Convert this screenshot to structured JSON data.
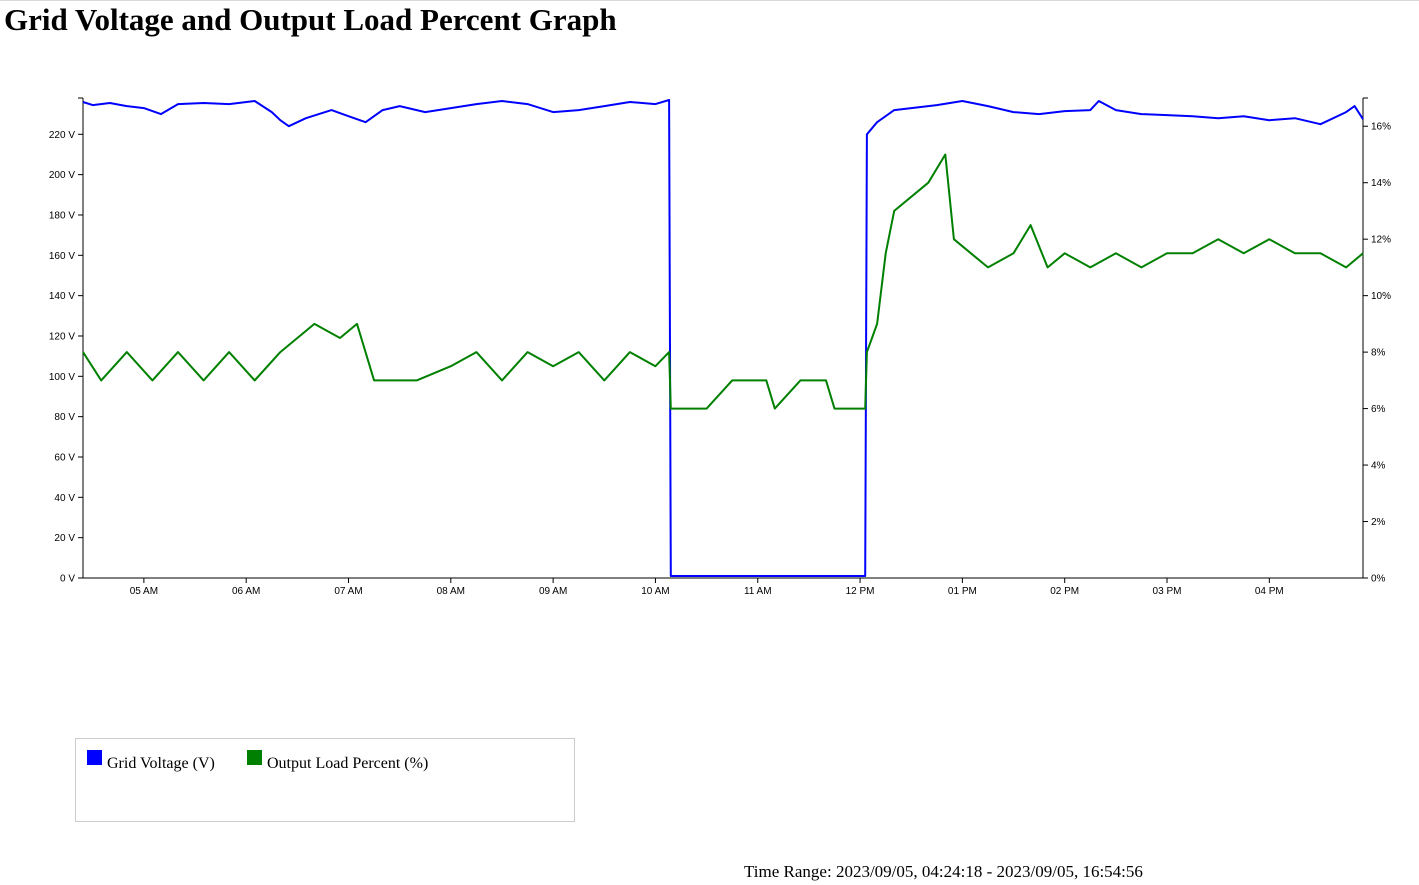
{
  "page": {
    "title": "Grid Voltage and Output Load Percent Graph"
  },
  "legend": {
    "items": [
      {
        "label": "Grid Voltage (V)",
        "color": "#0000ff"
      },
      {
        "label": "Output Load Percent (%)",
        "color": "#008000"
      }
    ]
  },
  "footer": {
    "time_range_label": "Time Range:",
    "time_range_value": "2023/09/05, 04:24:18 - 2023/09/05, 16:54:56"
  },
  "chart_data": {
    "type": "line",
    "title": "Grid Voltage and Output Load Percent Graph",
    "x_domain": [
      "2023-09-05T04:24:18",
      "2023-09-05T16:54:56"
    ],
    "x_ticks": [
      {
        "time": "2023-09-05T05:00:00",
        "label": "05 AM"
      },
      {
        "time": "2023-09-05T06:00:00",
        "label": "06 AM"
      },
      {
        "time": "2023-09-05T07:00:00",
        "label": "07 AM"
      },
      {
        "time": "2023-09-05T08:00:00",
        "label": "08 AM"
      },
      {
        "time": "2023-09-05T09:00:00",
        "label": "09 AM"
      },
      {
        "time": "2023-09-05T10:00:00",
        "label": "10 AM"
      },
      {
        "time": "2023-09-05T11:00:00",
        "label": "11 AM"
      },
      {
        "time": "2023-09-05T12:00:00",
        "label": "12 PM"
      },
      {
        "time": "2023-09-05T13:00:00",
        "label": "01 PM"
      },
      {
        "time": "2023-09-05T14:00:00",
        "label": "02 PM"
      },
      {
        "time": "2023-09-05T15:00:00",
        "label": "03 PM"
      },
      {
        "time": "2023-09-05T16:00:00",
        "label": "04 PM"
      }
    ],
    "y_left": {
      "range": [
        0,
        238
      ],
      "ticks": [
        0,
        20,
        40,
        60,
        80,
        100,
        120,
        140,
        160,
        180,
        200,
        220
      ],
      "tick_labels": [
        "0 V",
        "20 V",
        "40 V",
        "60 V",
        "80 V",
        "100 V",
        "120 V",
        "140 V",
        "160 V",
        "180 V",
        "200 V",
        "220 V"
      ]
    },
    "y_right": {
      "range": [
        0,
        17
      ],
      "ticks": [
        0,
        2,
        4,
        6,
        8,
        10,
        12,
        14,
        16
      ],
      "tick_labels": [
        "0%",
        "2%",
        "4%",
        "6%",
        "8%",
        "10%",
        "12%",
        "14%",
        "16%"
      ]
    },
    "series": [
      {
        "name": "Grid Voltage (V)",
        "axis": "left",
        "color": "#0000ff",
        "points": [
          [
            "2023-09-05T04:24:18",
            236.0
          ],
          [
            "2023-09-05T04:30:00",
            234.5
          ],
          [
            "2023-09-05T04:40:00",
            235.5
          ],
          [
            "2023-09-05T04:50:00",
            234.0
          ],
          [
            "2023-09-05T05:00:00",
            233.0
          ],
          [
            "2023-09-05T05:10:00",
            230.0
          ],
          [
            "2023-09-05T05:20:00",
            235.0
          ],
          [
            "2023-09-05T05:35:00",
            235.5
          ],
          [
            "2023-09-05T05:50:00",
            235.0
          ],
          [
            "2023-09-05T06:05:00",
            236.5
          ],
          [
            "2023-09-05T06:15:00",
            231.0
          ],
          [
            "2023-09-05T06:20:00",
            227.0
          ],
          [
            "2023-09-05T06:25:00",
            224.0
          ],
          [
            "2023-09-05T06:35:00",
            228.0
          ],
          [
            "2023-09-05T06:50:00",
            232.0
          ],
          [
            "2023-09-05T07:00:00",
            229.0
          ],
          [
            "2023-09-05T07:10:00",
            226.0
          ],
          [
            "2023-09-05T07:20:00",
            232.0
          ],
          [
            "2023-09-05T07:30:00",
            234.0
          ],
          [
            "2023-09-05T07:45:00",
            231.0
          ],
          [
            "2023-09-05T08:00:00",
            233.0
          ],
          [
            "2023-09-05T08:15:00",
            235.0
          ],
          [
            "2023-09-05T08:30:00",
            236.5
          ],
          [
            "2023-09-05T08:45:00",
            235.0
          ],
          [
            "2023-09-05T09:00:00",
            231.0
          ],
          [
            "2023-09-05T09:15:00",
            232.0
          ],
          [
            "2023-09-05T09:30:00",
            234.0
          ],
          [
            "2023-09-05T09:45:00",
            236.0
          ],
          [
            "2023-09-05T10:00:00",
            235.0
          ],
          [
            "2023-09-05T10:08:00",
            237.0
          ],
          [
            "2023-09-05T10:09:00",
            1.0
          ],
          [
            "2023-09-05T12:03:00",
            1.0
          ],
          [
            "2023-09-05T12:04:00",
            220.0
          ],
          [
            "2023-09-05T12:10:00",
            226.0
          ],
          [
            "2023-09-05T12:20:00",
            232.0
          ],
          [
            "2023-09-05T12:30:00",
            233.0
          ],
          [
            "2023-09-05T12:45:00",
            234.5
          ],
          [
            "2023-09-05T13:00:00",
            236.5
          ],
          [
            "2023-09-05T13:15:00",
            234.0
          ],
          [
            "2023-09-05T13:30:00",
            231.0
          ],
          [
            "2023-09-05T13:45:00",
            230.0
          ],
          [
            "2023-09-05T14:00:00",
            231.5
          ],
          [
            "2023-09-05T14:15:00",
            232.0
          ],
          [
            "2023-09-05T14:20:00",
            236.5
          ],
          [
            "2023-09-05T14:30:00",
            232.0
          ],
          [
            "2023-09-05T14:45:00",
            230.0
          ],
          [
            "2023-09-05T15:00:00",
            229.5
          ],
          [
            "2023-09-05T15:15:00",
            229.0
          ],
          [
            "2023-09-05T15:30:00",
            228.0
          ],
          [
            "2023-09-05T15:45:00",
            229.0
          ],
          [
            "2023-09-05T16:00:00",
            227.0
          ],
          [
            "2023-09-05T16:15:00",
            228.0
          ],
          [
            "2023-09-05T16:30:00",
            225.0
          ],
          [
            "2023-09-05T16:45:00",
            231.0
          ],
          [
            "2023-09-05T16:50:00",
            234.0
          ],
          [
            "2023-09-05T16:54:56",
            227.5
          ]
        ]
      },
      {
        "name": "Output Load Percent (%)",
        "axis": "right",
        "color": "#008000",
        "points": [
          [
            "2023-09-05T04:24:18",
            8.0
          ],
          [
            "2023-09-05T04:35:00",
            7.0
          ],
          [
            "2023-09-05T04:50:00",
            8.0
          ],
          [
            "2023-09-05T05:05:00",
            7.0
          ],
          [
            "2023-09-05T05:20:00",
            8.0
          ],
          [
            "2023-09-05T05:35:00",
            7.0
          ],
          [
            "2023-09-05T05:50:00",
            8.0
          ],
          [
            "2023-09-05T06:05:00",
            7.0
          ],
          [
            "2023-09-05T06:20:00",
            8.0
          ],
          [
            "2023-09-05T06:40:00",
            9.0
          ],
          [
            "2023-09-05T06:55:00",
            8.5
          ],
          [
            "2023-09-05T07:05:00",
            9.0
          ],
          [
            "2023-09-05T07:15:00",
            7.0
          ],
          [
            "2023-09-05T07:40:00",
            7.0
          ],
          [
            "2023-09-05T08:00:00",
            7.5
          ],
          [
            "2023-09-05T08:15:00",
            8.0
          ],
          [
            "2023-09-05T08:30:00",
            7.0
          ],
          [
            "2023-09-05T08:45:00",
            8.0
          ],
          [
            "2023-09-05T09:00:00",
            7.5
          ],
          [
            "2023-09-05T09:15:00",
            8.0
          ],
          [
            "2023-09-05T09:30:00",
            7.0
          ],
          [
            "2023-09-05T09:45:00",
            8.0
          ],
          [
            "2023-09-05T10:00:00",
            7.5
          ],
          [
            "2023-09-05T10:08:00",
            8.0
          ],
          [
            "2023-09-05T10:09:00",
            6.0
          ],
          [
            "2023-09-05T10:30:00",
            6.0
          ],
          [
            "2023-09-05T10:45:00",
            7.0
          ],
          [
            "2023-09-05T11:05:00",
            7.0
          ],
          [
            "2023-09-05T11:10:00",
            6.0
          ],
          [
            "2023-09-05T11:25:00",
            7.0
          ],
          [
            "2023-09-05T11:40:00",
            7.0
          ],
          [
            "2023-09-05T11:45:00",
            6.0
          ],
          [
            "2023-09-05T12:03:00",
            6.0
          ],
          [
            "2023-09-05T12:04:00",
            8.0
          ],
          [
            "2023-09-05T12:10:00",
            9.0
          ],
          [
            "2023-09-05T12:15:00",
            11.5
          ],
          [
            "2023-09-05T12:20:00",
            13.0
          ],
          [
            "2023-09-05T12:30:00",
            13.5
          ],
          [
            "2023-09-05T12:40:00",
            14.0
          ],
          [
            "2023-09-05T12:50:00",
            15.0
          ],
          [
            "2023-09-05T12:55:00",
            12.0
          ],
          [
            "2023-09-05T13:05:00",
            11.5
          ],
          [
            "2023-09-05T13:15:00",
            11.0
          ],
          [
            "2023-09-05T13:30:00",
            11.5
          ],
          [
            "2023-09-05T13:40:00",
            12.5
          ],
          [
            "2023-09-05T13:50:00",
            11.0
          ],
          [
            "2023-09-05T14:00:00",
            11.5
          ],
          [
            "2023-09-05T14:15:00",
            11.0
          ],
          [
            "2023-09-05T14:30:00",
            11.5
          ],
          [
            "2023-09-05T14:45:00",
            11.0
          ],
          [
            "2023-09-05T15:00:00",
            11.5
          ],
          [
            "2023-09-05T15:15:00",
            11.5
          ],
          [
            "2023-09-05T15:30:00",
            12.0
          ],
          [
            "2023-09-05T15:45:00",
            11.5
          ],
          [
            "2023-09-05T16:00:00",
            12.0
          ],
          [
            "2023-09-05T16:15:00",
            11.5
          ],
          [
            "2023-09-05T16:30:00",
            11.5
          ],
          [
            "2023-09-05T16:45:00",
            11.0
          ],
          [
            "2023-09-05T16:54:56",
            11.5
          ]
        ]
      }
    ],
    "legend_position": "bottom-left",
    "grid": false
  }
}
